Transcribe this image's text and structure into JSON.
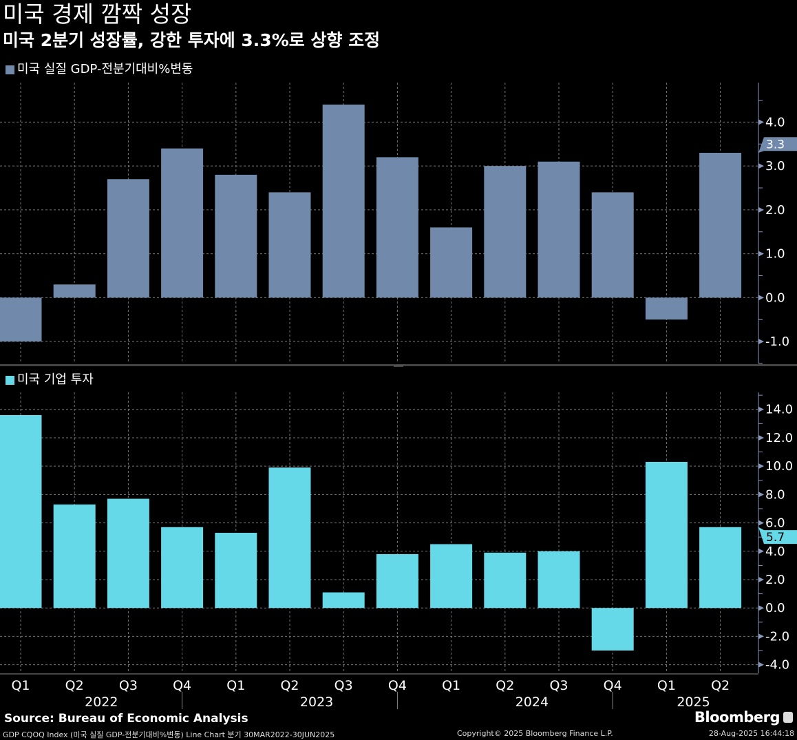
{
  "header": {
    "title": "미국 경제 깜짝 성장",
    "subtitle": "미국 2분기 성장률, 강한 투자에 3.3%로 상향 조정"
  },
  "footer": {
    "source": "Source: Bureau of Economic Analysis",
    "footnote": "GDP CQOQ Index (미국 실질 GDP-전분기대비%변동) Line Chart  분기 30MAR2022-30JUN2025",
    "copyright": "Copyright© 2025 Bloomberg Finance L.P.",
    "timestamp": "28-Aug-2025 16:44:18",
    "logo": "Bloomberg"
  },
  "chart_data": [
    {
      "type": "bar",
      "legend": "미국 실질 GDP-전분기대비%변동",
      "color": "#7189aa",
      "categories": [
        "Q1",
        "Q2",
        "Q3",
        "Q4",
        "Q1",
        "Q2",
        "Q3",
        "Q4",
        "Q1",
        "Q2",
        "Q3",
        "Q4",
        "Q1",
        "Q2"
      ],
      "years": [
        "2022",
        "2023",
        "2024",
        "2025"
      ],
      "values": [
        -1.0,
        0.3,
        2.7,
        3.4,
        2.8,
        2.4,
        4.4,
        3.2,
        1.6,
        3.0,
        3.1,
        2.4,
        -0.5,
        3.3
      ],
      "ylim": [
        -1.5,
        4.9
      ],
      "yticks": [
        -1.0,
        0.0,
        1.0,
        2.0,
        3.0,
        4.0
      ],
      "last_value_label": "3.3",
      "grid": true,
      "axis_side": "right"
    },
    {
      "type": "bar",
      "legend": "미국 기업 투자",
      "color": "#66d9e8",
      "categories": [
        "Q1",
        "Q2",
        "Q3",
        "Q4",
        "Q1",
        "Q2",
        "Q3",
        "Q4",
        "Q1",
        "Q2",
        "Q3",
        "Q4",
        "Q1",
        "Q2"
      ],
      "years": [
        "2022",
        "2023",
        "2024",
        "2025"
      ],
      "values": [
        13.6,
        7.3,
        7.7,
        5.7,
        5.3,
        9.9,
        1.1,
        3.8,
        4.5,
        3.9,
        4.0,
        -3.0,
        10.3,
        5.7
      ],
      "ylim": [
        -4.6,
        15.2
      ],
      "yticks": [
        -4.0,
        -2.0,
        0.0,
        2.0,
        4.0,
        6.0,
        8.0,
        10.0,
        12.0,
        14.0
      ],
      "last_value_label": "5.7",
      "grid": true,
      "axis_side": "right"
    }
  ]
}
